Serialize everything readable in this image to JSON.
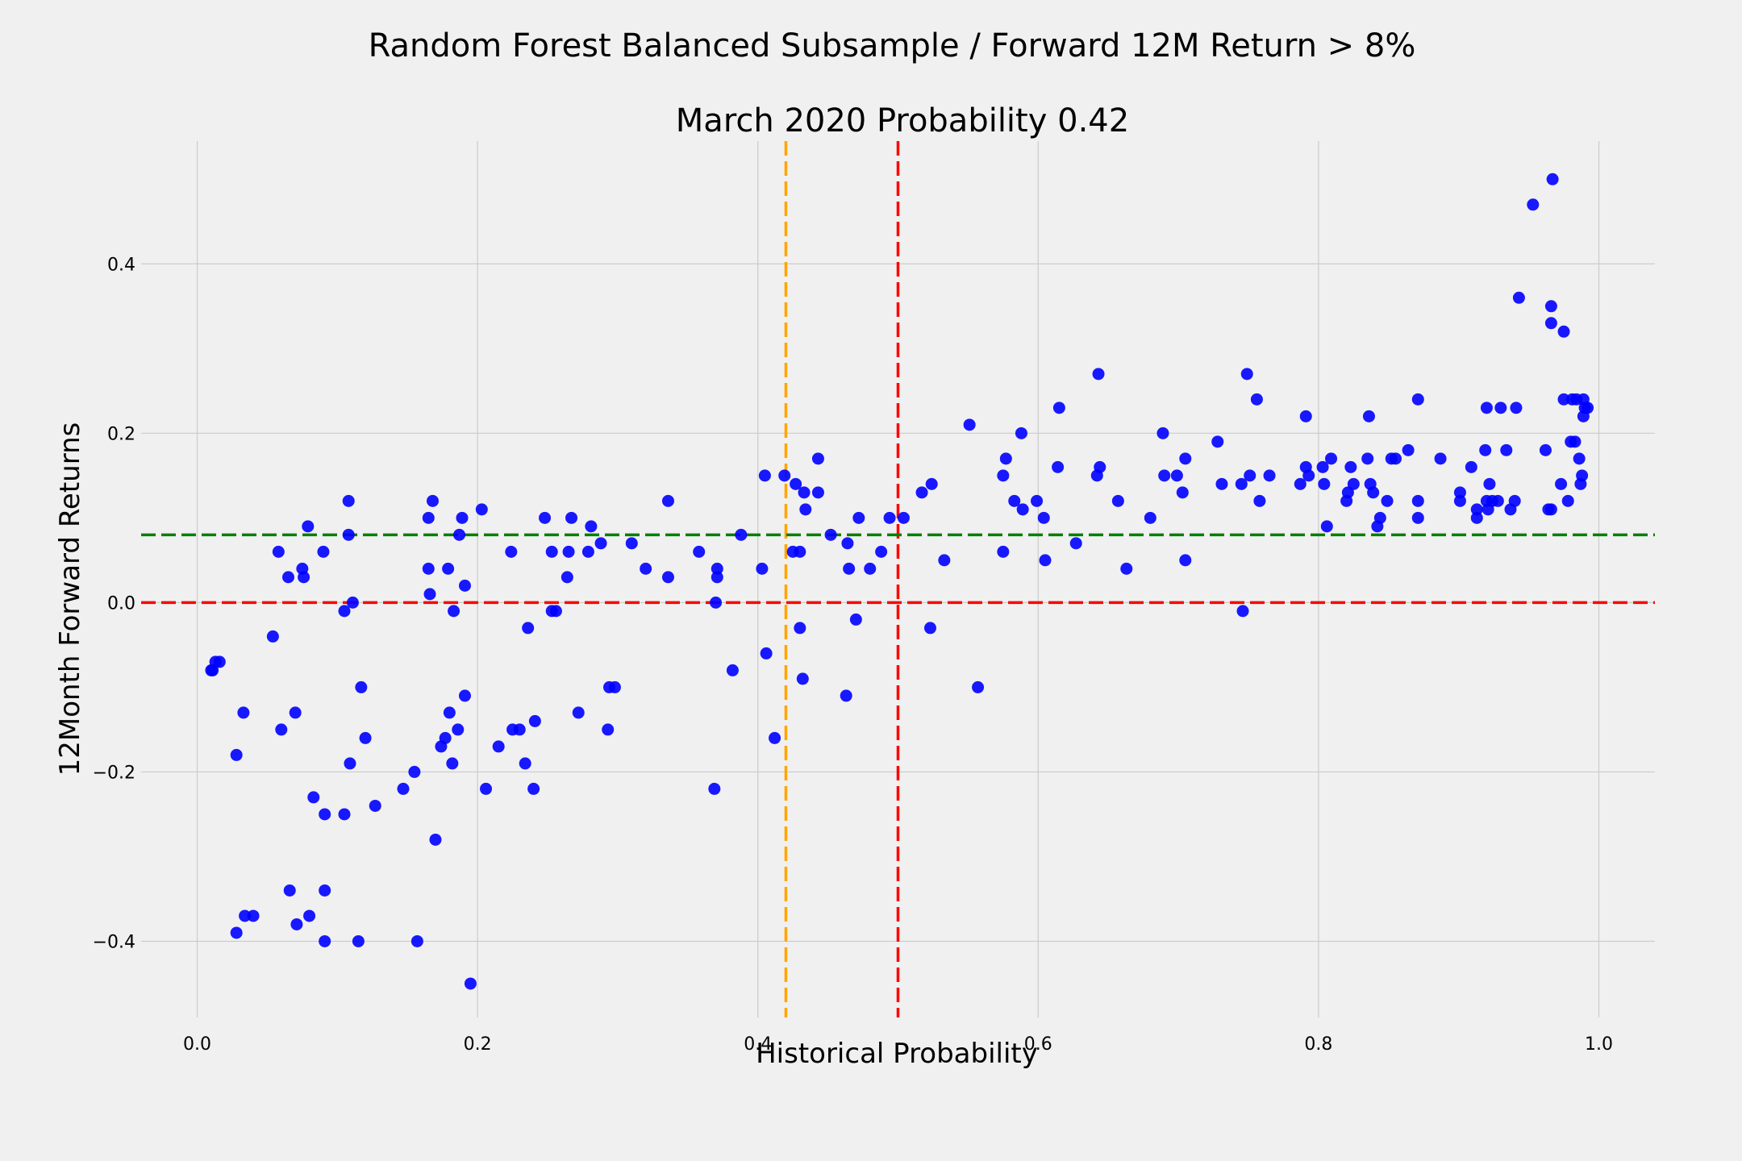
{
  "chart_data": {
    "type": "scatter",
    "title": "Random Forest Balanced Subsample / Forward 12M Return > 8%",
    "subtitle": "March 2020 Probability 0.42",
    "xlabel": "Historical Probability",
    "ylabel": "12Month Forward Returns",
    "xlim": [
      -0.04,
      1.04
    ],
    "ylim": [
      -0.49,
      0.545
    ],
    "xticks": [
      0.0,
      0.2,
      0.4,
      0.6,
      0.8,
      1.0
    ],
    "xtick_labels": [
      "0.0",
      "0.2",
      "0.4",
      "0.6",
      "0.8",
      "1.0"
    ],
    "yticks": [
      -0.4,
      -0.2,
      0.0,
      0.2,
      0.4
    ],
    "ytick_labels": [
      "−0.4",
      "−0.2",
      "0.0",
      "0.2",
      "0.4"
    ],
    "grid": true,
    "point_color": "#0000ff",
    "reference_lines": [
      {
        "orientation": "vertical",
        "value": 0.42,
        "color": "#ffa500",
        "style": "dashed"
      },
      {
        "orientation": "vertical",
        "value": 0.5,
        "color": "#ff0000",
        "style": "dashed"
      },
      {
        "orientation": "horizontal",
        "value": 0.08,
        "color": "#008000",
        "style": "dashed"
      },
      {
        "orientation": "horizontal",
        "value": 0.0,
        "color": "#ff0000",
        "style": "dashed"
      }
    ],
    "points": [
      [
        0.01,
        -0.08
      ],
      [
        0.011,
        -0.08
      ],
      [
        0.013,
        -0.07
      ],
      [
        0.016,
        -0.07
      ],
      [
        0.028,
        -0.18
      ],
      [
        0.028,
        -0.39
      ],
      [
        0.033,
        -0.13
      ],
      [
        0.034,
        -0.37
      ],
      [
        0.04,
        -0.37
      ],
      [
        0.054,
        -0.04
      ],
      [
        0.058,
        0.06
      ],
      [
        0.06,
        -0.15
      ],
      [
        0.065,
        0.03
      ],
      [
        0.066,
        -0.34
      ],
      [
        0.07,
        -0.13
      ],
      [
        0.071,
        -0.38
      ],
      [
        0.075,
        0.04
      ],
      [
        0.076,
        0.03
      ],
      [
        0.079,
        0.09
      ],
      [
        0.08,
        -0.37
      ],
      [
        0.083,
        -0.23
      ],
      [
        0.09,
        0.06
      ],
      [
        0.091,
        -0.25
      ],
      [
        0.091,
        -0.34
      ],
      [
        0.091,
        -0.4
      ],
      [
        0.105,
        -0.01
      ],
      [
        0.105,
        -0.25
      ],
      [
        0.108,
        0.12
      ],
      [
        0.108,
        0.08
      ],
      [
        0.109,
        -0.19
      ],
      [
        0.111,
        0.0
      ],
      [
        0.115,
        -0.4
      ],
      [
        0.117,
        -0.1
      ],
      [
        0.12,
        -0.16
      ],
      [
        0.127,
        -0.24
      ],
      [
        0.147,
        -0.22
      ],
      [
        0.155,
        -0.2
      ],
      [
        0.157,
        -0.4
      ],
      [
        0.165,
        0.1
      ],
      [
        0.165,
        0.04
      ],
      [
        0.166,
        0.01
      ],
      [
        0.168,
        0.12
      ],
      [
        0.17,
        -0.28
      ],
      [
        0.174,
        -0.17
      ],
      [
        0.177,
        -0.16
      ],
      [
        0.179,
        0.04
      ],
      [
        0.18,
        -0.13
      ],
      [
        0.182,
        -0.19
      ],
      [
        0.183,
        -0.01
      ],
      [
        0.186,
        -0.15
      ],
      [
        0.187,
        0.08
      ],
      [
        0.189,
        0.1
      ],
      [
        0.191,
        0.02
      ],
      [
        0.191,
        -0.11
      ],
      [
        0.195,
        -0.45
      ],
      [
        0.203,
        0.11
      ],
      [
        0.206,
        -0.22
      ],
      [
        0.215,
        -0.17
      ],
      [
        0.224,
        0.06
      ],
      [
        0.225,
        -0.15
      ],
      [
        0.23,
        -0.15
      ],
      [
        0.234,
        -0.19
      ],
      [
        0.236,
        -0.03
      ],
      [
        0.24,
        -0.22
      ],
      [
        0.241,
        -0.14
      ],
      [
        0.248,
        0.1
      ],
      [
        0.253,
        0.06
      ],
      [
        0.253,
        -0.01
      ],
      [
        0.256,
        -0.01
      ],
      [
        0.264,
        0.03
      ],
      [
        0.265,
        0.06
      ],
      [
        0.267,
        0.1
      ],
      [
        0.272,
        -0.13
      ],
      [
        0.279,
        0.06
      ],
      [
        0.281,
        0.09
      ],
      [
        0.288,
        0.07
      ],
      [
        0.293,
        -0.15
      ],
      [
        0.294,
        -0.1
      ],
      [
        0.298,
        -0.1
      ],
      [
        0.31,
        0.07
      ],
      [
        0.32,
        0.04
      ],
      [
        0.336,
        0.12
      ],
      [
        0.336,
        0.03
      ],
      [
        0.358,
        0.06
      ],
      [
        0.369,
        -0.22
      ],
      [
        0.37,
        0.0
      ],
      [
        0.371,
        0.03
      ],
      [
        0.371,
        0.04
      ],
      [
        0.382,
        -0.08
      ],
      [
        0.388,
        0.08
      ],
      [
        0.403,
        0.04
      ],
      [
        0.405,
        0.15
      ],
      [
        0.406,
        -0.06
      ],
      [
        0.412,
        -0.16
      ],
      [
        0.419,
        0.15
      ],
      [
        0.425,
        0.06
      ],
      [
        0.427,
        0.14
      ],
      [
        0.43,
        0.06
      ],
      [
        0.43,
        -0.03
      ],
      [
        0.432,
        -0.09
      ],
      [
        0.433,
        0.13
      ],
      [
        0.434,
        0.11
      ],
      [
        0.443,
        0.17
      ],
      [
        0.443,
        0.13
      ],
      [
        0.452,
        0.08
      ],
      [
        0.463,
        -0.11
      ],
      [
        0.464,
        0.07
      ],
      [
        0.465,
        0.04
      ],
      [
        0.47,
        -0.02
      ],
      [
        0.472,
        0.1
      ],
      [
        0.48,
        0.04
      ],
      [
        0.488,
        0.06
      ],
      [
        0.494,
        0.1
      ],
      [
        0.504,
        0.1
      ],
      [
        0.517,
        0.13
      ],
      [
        0.523,
        -0.03
      ],
      [
        0.524,
        0.14
      ],
      [
        0.533,
        0.05
      ],
      [
        0.551,
        0.21
      ],
      [
        0.557,
        -0.1
      ],
      [
        0.575,
        0.06
      ],
      [
        0.575,
        0.15
      ],
      [
        0.577,
        0.17
      ],
      [
        0.583,
        0.12
      ],
      [
        0.588,
        0.2
      ],
      [
        0.589,
        0.11
      ],
      [
        0.599,
        0.12
      ],
      [
        0.604,
        0.1
      ],
      [
        0.605,
        0.05
      ],
      [
        0.614,
        0.16
      ],
      [
        0.615,
        0.23
      ],
      [
        0.627,
        0.07
      ],
      [
        0.642,
        0.15
      ],
      [
        0.643,
        0.27
      ],
      [
        0.644,
        0.16
      ],
      [
        0.657,
        0.12
      ],
      [
        0.663,
        0.04
      ],
      [
        0.68,
        0.1
      ],
      [
        0.689,
        0.2
      ],
      [
        0.69,
        0.15
      ],
      [
        0.699,
        0.15
      ],
      [
        0.703,
        0.13
      ],
      [
        0.705,
        0.05
      ],
      [
        0.705,
        0.17
      ],
      [
        0.728,
        0.19
      ],
      [
        0.731,
        0.14
      ],
      [
        0.745,
        0.14
      ],
      [
        0.746,
        -0.01
      ],
      [
        0.749,
        0.27
      ],
      [
        0.751,
        0.15
      ],
      [
        0.756,
        0.24
      ],
      [
        0.758,
        0.12
      ],
      [
        0.765,
        0.15
      ],
      [
        0.787,
        0.14
      ],
      [
        0.791,
        0.16
      ],
      [
        0.791,
        0.22
      ],
      [
        0.793,
        0.15
      ],
      [
        0.803,
        0.16
      ],
      [
        0.804,
        0.14
      ],
      [
        0.806,
        0.09
      ],
      [
        0.809,
        0.17
      ],
      [
        0.82,
        0.12
      ],
      [
        0.821,
        0.13
      ],
      [
        0.823,
        0.16
      ],
      [
        0.825,
        0.14
      ],
      [
        0.835,
        0.17
      ],
      [
        0.836,
        0.22
      ],
      [
        0.837,
        0.14
      ],
      [
        0.839,
        0.13
      ],
      [
        0.842,
        0.09
      ],
      [
        0.844,
        0.1
      ],
      [
        0.849,
        0.12
      ],
      [
        0.852,
        0.17
      ],
      [
        0.855,
        0.17
      ],
      [
        0.864,
        0.18
      ],
      [
        0.871,
        0.24
      ],
      [
        0.871,
        0.12
      ],
      [
        0.871,
        0.1
      ],
      [
        0.887,
        0.17
      ],
      [
        0.901,
        0.13
      ],
      [
        0.901,
        0.12
      ],
      [
        0.909,
        0.16
      ],
      [
        0.913,
        0.11
      ],
      [
        0.913,
        0.1
      ],
      [
        0.919,
        0.18
      ],
      [
        0.92,
        0.23
      ],
      [
        0.92,
        0.12
      ],
      [
        0.921,
        0.11
      ],
      [
        0.922,
        0.14
      ],
      [
        0.924,
        0.12
      ],
      [
        0.928,
        0.12
      ],
      [
        0.93,
        0.23
      ],
      [
        0.934,
        0.18
      ],
      [
        0.937,
        0.11
      ],
      [
        0.94,
        0.12
      ],
      [
        0.941,
        0.23
      ],
      [
        0.943,
        0.36
      ],
      [
        0.953,
        0.47
      ],
      [
        0.962,
        0.18
      ],
      [
        0.964,
        0.11
      ],
      [
        0.966,
        0.11
      ],
      [
        0.966,
        0.35
      ],
      [
        0.966,
        0.33
      ],
      [
        0.967,
        0.5
      ],
      [
        0.973,
        0.14
      ],
      [
        0.975,
        0.24
      ],
      [
        0.975,
        0.32
      ],
      [
        0.978,
        0.12
      ],
      [
        0.98,
        0.19
      ],
      [
        0.981,
        0.24
      ],
      [
        0.983,
        0.19
      ],
      [
        0.984,
        0.24
      ],
      [
        0.986,
        0.17
      ],
      [
        0.987,
        0.14
      ],
      [
        0.988,
        0.15
      ],
      [
        0.989,
        0.24
      ],
      [
        0.989,
        0.22
      ],
      [
        0.99,
        0.23
      ],
      [
        0.992,
        0.23
      ]
    ]
  }
}
